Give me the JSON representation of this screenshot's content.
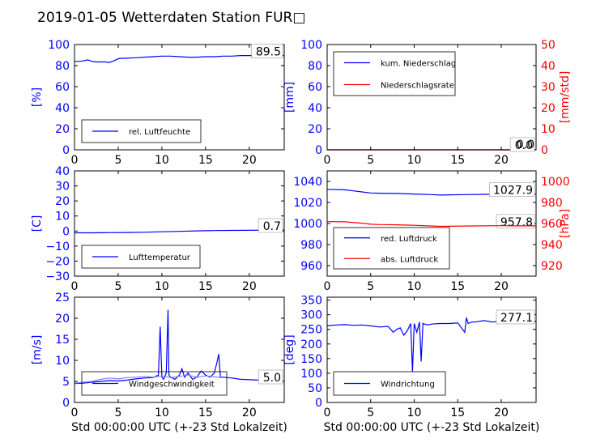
{
  "figure_title": "2019-01-05 Wetterdaten Station FUR□",
  "colors": {
    "blue": "#0000ff",
    "red": "#ff0000",
    "light_blue": "#8080ff",
    "axes": "#000000"
  },
  "chart_data": [
    {
      "id": "humidity",
      "type": "line",
      "xlim": [
        0,
        24
      ],
      "ylim": [
        0,
        100
      ],
      "xticks": [
        0,
        5,
        10,
        15,
        20
      ],
      "yticks": [
        0,
        20,
        40,
        60,
        80,
        100
      ],
      "ylabel": "[%]",
      "ylabel_color": "#0000ff",
      "ytick_color": "#0000ff",
      "xlabel": "",
      "last_value": "89.5",
      "legend": {
        "placement": "lower-left",
        "entries": [
          {
            "label": "rel. Luftfeuchte",
            "color": "#0000ff"
          }
        ]
      },
      "series": [
        {
          "name": "rel. Luftfeuchte",
          "color": "#0000ff",
          "axis": "left",
          "x": [
            0,
            0.5,
            1,
            1.5,
            2,
            2.5,
            3,
            3.5,
            4,
            4.5,
            5,
            5.5,
            6,
            7,
            8,
            9,
            10,
            11,
            12,
            13,
            14,
            15,
            16,
            17,
            18,
            19,
            20,
            21,
            22,
            23,
            24
          ],
          "y": [
            84,
            84,
            84.5,
            85.5,
            84,
            83.5,
            83.5,
            83.5,
            83,
            84.5,
            86.5,
            87,
            87,
            87.5,
            88,
            88.5,
            89,
            89,
            88.5,
            88,
            88,
            88.5,
            88.5,
            89,
            89,
            89.5,
            89.5,
            89.5,
            89.5,
            89.5,
            89.5
          ]
        }
      ]
    },
    {
      "id": "precipitation",
      "type": "line",
      "xlim": [
        0,
        24
      ],
      "ylim": [
        0,
        100
      ],
      "ylim_right": [
        0,
        50
      ],
      "xticks": [
        0,
        5,
        10,
        15,
        20
      ],
      "yticks": [
        0,
        20,
        40,
        60,
        80,
        100
      ],
      "yticks_right": [
        0,
        10,
        20,
        30,
        40,
        50
      ],
      "ylabel": "[mm]",
      "ylabel_color": "#0000ff",
      "ytick_color": "#0000ff",
      "ylabel_right": "[mm/std]",
      "ylabel_right_color": "#ff0000",
      "xlabel": "",
      "last_value": "0.0",
      "last_value_right": "0.0",
      "legend": {
        "placement": "upper-left",
        "entries": [
          {
            "label": "kum. Niederschlag",
            "color": "#0000ff"
          },
          {
            "label": "Niederschlagsrate",
            "color": "#ff0000"
          }
        ]
      },
      "series": [
        {
          "name": "kum. Niederschlag",
          "color": "#0000ff",
          "axis": "left",
          "x": [
            0,
            24
          ],
          "y": [
            0,
            0
          ]
        },
        {
          "name": "Niederschlagsrate",
          "color": "#ff0000",
          "axis": "right",
          "x": [
            0,
            24
          ],
          "y": [
            0,
            0
          ]
        }
      ]
    },
    {
      "id": "temperature",
      "type": "line",
      "xlim": [
        0,
        24
      ],
      "ylim": [
        -30,
        40
      ],
      "xticks": [
        0,
        5,
        10,
        15,
        20
      ],
      "yticks": [
        -30,
        -20,
        -10,
        0,
        10,
        20,
        30,
        40
      ],
      "ylabel": "[C]",
      "ylabel_color": "#0000ff",
      "ytick_color": "#0000ff",
      "xlabel": "",
      "last_value": "0.7",
      "legend": {
        "placement": "lower-left",
        "entries": [
          {
            "label": "Lufttemperatur",
            "color": "#0000ff"
          }
        ]
      },
      "series": [
        {
          "name": "Lufttemperatur",
          "color": "#0000ff",
          "axis": "left",
          "x": [
            0,
            2,
            4,
            6,
            8,
            10,
            12,
            14,
            16,
            18,
            20,
            22,
            24
          ],
          "y": [
            -1.2,
            -1.2,
            -1.1,
            -1.0,
            -0.8,
            -0.5,
            -0.2,
            0.1,
            0.3,
            0.4,
            0.5,
            0.6,
            0.7
          ]
        }
      ]
    },
    {
      "id": "pressure",
      "type": "line",
      "xlim": [
        0,
        24
      ],
      "ylim": [
        950,
        1050
      ],
      "ylim_right": [
        910,
        1010
      ],
      "xticks": [
        0,
        5,
        10,
        15,
        20
      ],
      "yticks": [
        960,
        980,
        1000,
        1020,
        1040
      ],
      "yticks_right": [
        920,
        940,
        960,
        980,
        1000
      ],
      "ylabel": "",
      "ylabel_color": "#0000ff",
      "ytick_color": "#0000ff",
      "ylabel_right": "[hPa]",
      "ylabel_right_color": "#ff0000",
      "xlabel": "",
      "last_value": "1027.9",
      "last_value_right": "957.8",
      "legend": {
        "placement": "lower-left",
        "entries": [
          {
            "label": "red. Luftdruck",
            "color": "#0000ff"
          },
          {
            "label": "abs. Luftdruck",
            "color": "#ff0000"
          }
        ]
      },
      "series": [
        {
          "name": "red. Luftdruck",
          "color": "#0000ff",
          "axis": "left",
          "x": [
            0,
            2,
            3,
            4,
            5,
            6,
            8,
            10,
            12,
            13,
            14,
            16,
            18,
            20,
            22,
            24
          ],
          "y": [
            1032.5,
            1032,
            1031,
            1030,
            1029,
            1028.8,
            1028.5,
            1028,
            1027.5,
            1027,
            1027.2,
            1027.5,
            1027.7,
            1027.8,
            1027.9,
            1027.9
          ]
        }
      ]
    },
    {
      "id": "windspeed",
      "type": "line",
      "xlim": [
        0,
        24
      ],
      "ylim": [
        0,
        25
      ],
      "xticks": [
        0,
        5,
        10,
        15,
        20
      ],
      "yticks": [
        0,
        5,
        10,
        15,
        20,
        25
      ],
      "ylabel": "[m/s]",
      "ylabel_color": "#0000ff",
      "ytick_color": "#0000ff",
      "xlabel": "Std 00:00:00 UTC (+-23 Std Lokalzeit)",
      "last_value": "5.0",
      "legend": {
        "placement": "lower-left",
        "entries": [
          {
            "label": "Windgeschwindigkeit",
            "color": "#0000ff"
          }
        ]
      },
      "series": [
        {
          "name": "Windgeschwindigkeit",
          "color": "#0000ff",
          "axis": "left",
          "x": [
            0,
            1,
            2,
            3,
            4,
            5,
            6,
            7,
            8,
            9,
            9.6,
            9.8,
            10.0,
            10.2,
            10.5,
            10.7,
            10.8,
            11.0,
            11.5,
            12.0,
            12.3,
            12.6,
            13.0,
            13.5,
            14.0,
            14.5,
            15.0,
            15.5,
            16.0,
            16.3,
            16.5,
            16.7,
            17.0,
            18.0,
            19.0,
            20.0,
            21.0,
            22.0,
            23.0,
            24.0
          ],
          "y": [
            4.5,
            4.6,
            4.8,
            5.0,
            5.2,
            5.1,
            5.3,
            5.6,
            5.8,
            5.9,
            6.5,
            18.0,
            6.0,
            5.5,
            7.0,
            22.0,
            6.5,
            6.0,
            5.5,
            6.5,
            8.0,
            6.0,
            7.0,
            5.5,
            6.0,
            7.5,
            6.5,
            6.0,
            7.0,
            9.5,
            11.5,
            6.0,
            6.0,
            5.8,
            5.5,
            5.4,
            5.3,
            5.5,
            5.2,
            5.0
          ]
        },
        {
          "name": "",
          "color": "#8080ff",
          "axis": "left",
          "x": [
            0,
            1,
            2,
            3,
            4,
            5,
            6,
            7,
            8,
            9,
            10,
            11,
            12,
            13,
            14,
            15,
            16,
            16.8
          ],
          "y": [
            4.6,
            4.8,
            5.0,
            5.5,
            5.8,
            5.6,
            5.9,
            6.0,
            6.2,
            6.0,
            6.3,
            5.9,
            6.2,
            6.5,
            6.0,
            6.3,
            6.1,
            5.9
          ]
        }
      ]
    },
    {
      "id": "winddirection",
      "type": "line",
      "xlim": [
        0,
        24
      ],
      "ylim": [
        0,
        360
      ],
      "xticks": [
        0,
        5,
        10,
        15,
        20
      ],
      "yticks": [
        0,
        50,
        100,
        150,
        200,
        250,
        300,
        350
      ],
      "ylabel": "[deg]",
      "ylabel_color": "#0000ff",
      "ytick_color": "#0000ff",
      "xlabel": "Std 00:00:00 UTC (+-23 Std Lokalzeit)",
      "last_value": "277.1",
      "legend": {
        "placement": "lower-left",
        "entries": [
          {
            "label": "Windrichtung",
            "color": "#0000ff"
          }
        ]
      },
      "series": [
        {
          "name": "Windrichtung",
          "color": "#0000ff",
          "axis": "left",
          "x": [
            0,
            1,
            2,
            3,
            4,
            5,
            6,
            7,
            7.6,
            8.0,
            8.4,
            8.8,
            9.2,
            9.6,
            9.8,
            10.0,
            10.3,
            10.6,
            10.8,
            11.0,
            11.5,
            12,
            13,
            14,
            15,
            15.8,
            16.0,
            16.2,
            16.6,
            17,
            18,
            19,
            20,
            21,
            22,
            23,
            24
          ],
          "y": [
            262,
            265,
            266,
            264,
            265,
            262,
            258,
            260,
            240,
            250,
            255,
            230,
            245,
            270,
            105,
            270,
            240,
            275,
            140,
            270,
            265,
            268,
            270,
            270,
            272,
            240,
            290,
            270,
            275,
            275,
            280,
            275,
            278,
            280,
            277,
            278,
            277
          ]
        }
      ]
    }
  ]
}
